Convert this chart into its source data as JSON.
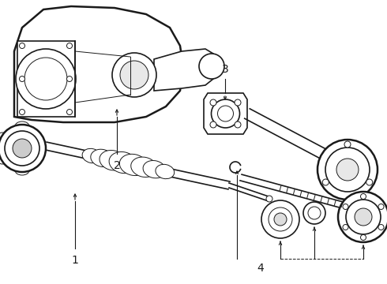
{
  "background_color": "#ffffff",
  "line_color": "#1a1a1a",
  "label_color": "#111111",
  "lw_main": 1.2,
  "lw_thin": 0.7,
  "lw_thick": 1.8,
  "label_fontsize": 10,
  "figsize": [
    4.9,
    3.6
  ],
  "dpi": 100,
  "xlim": [
    0,
    490
  ],
  "ylim": [
    0,
    360
  ]
}
